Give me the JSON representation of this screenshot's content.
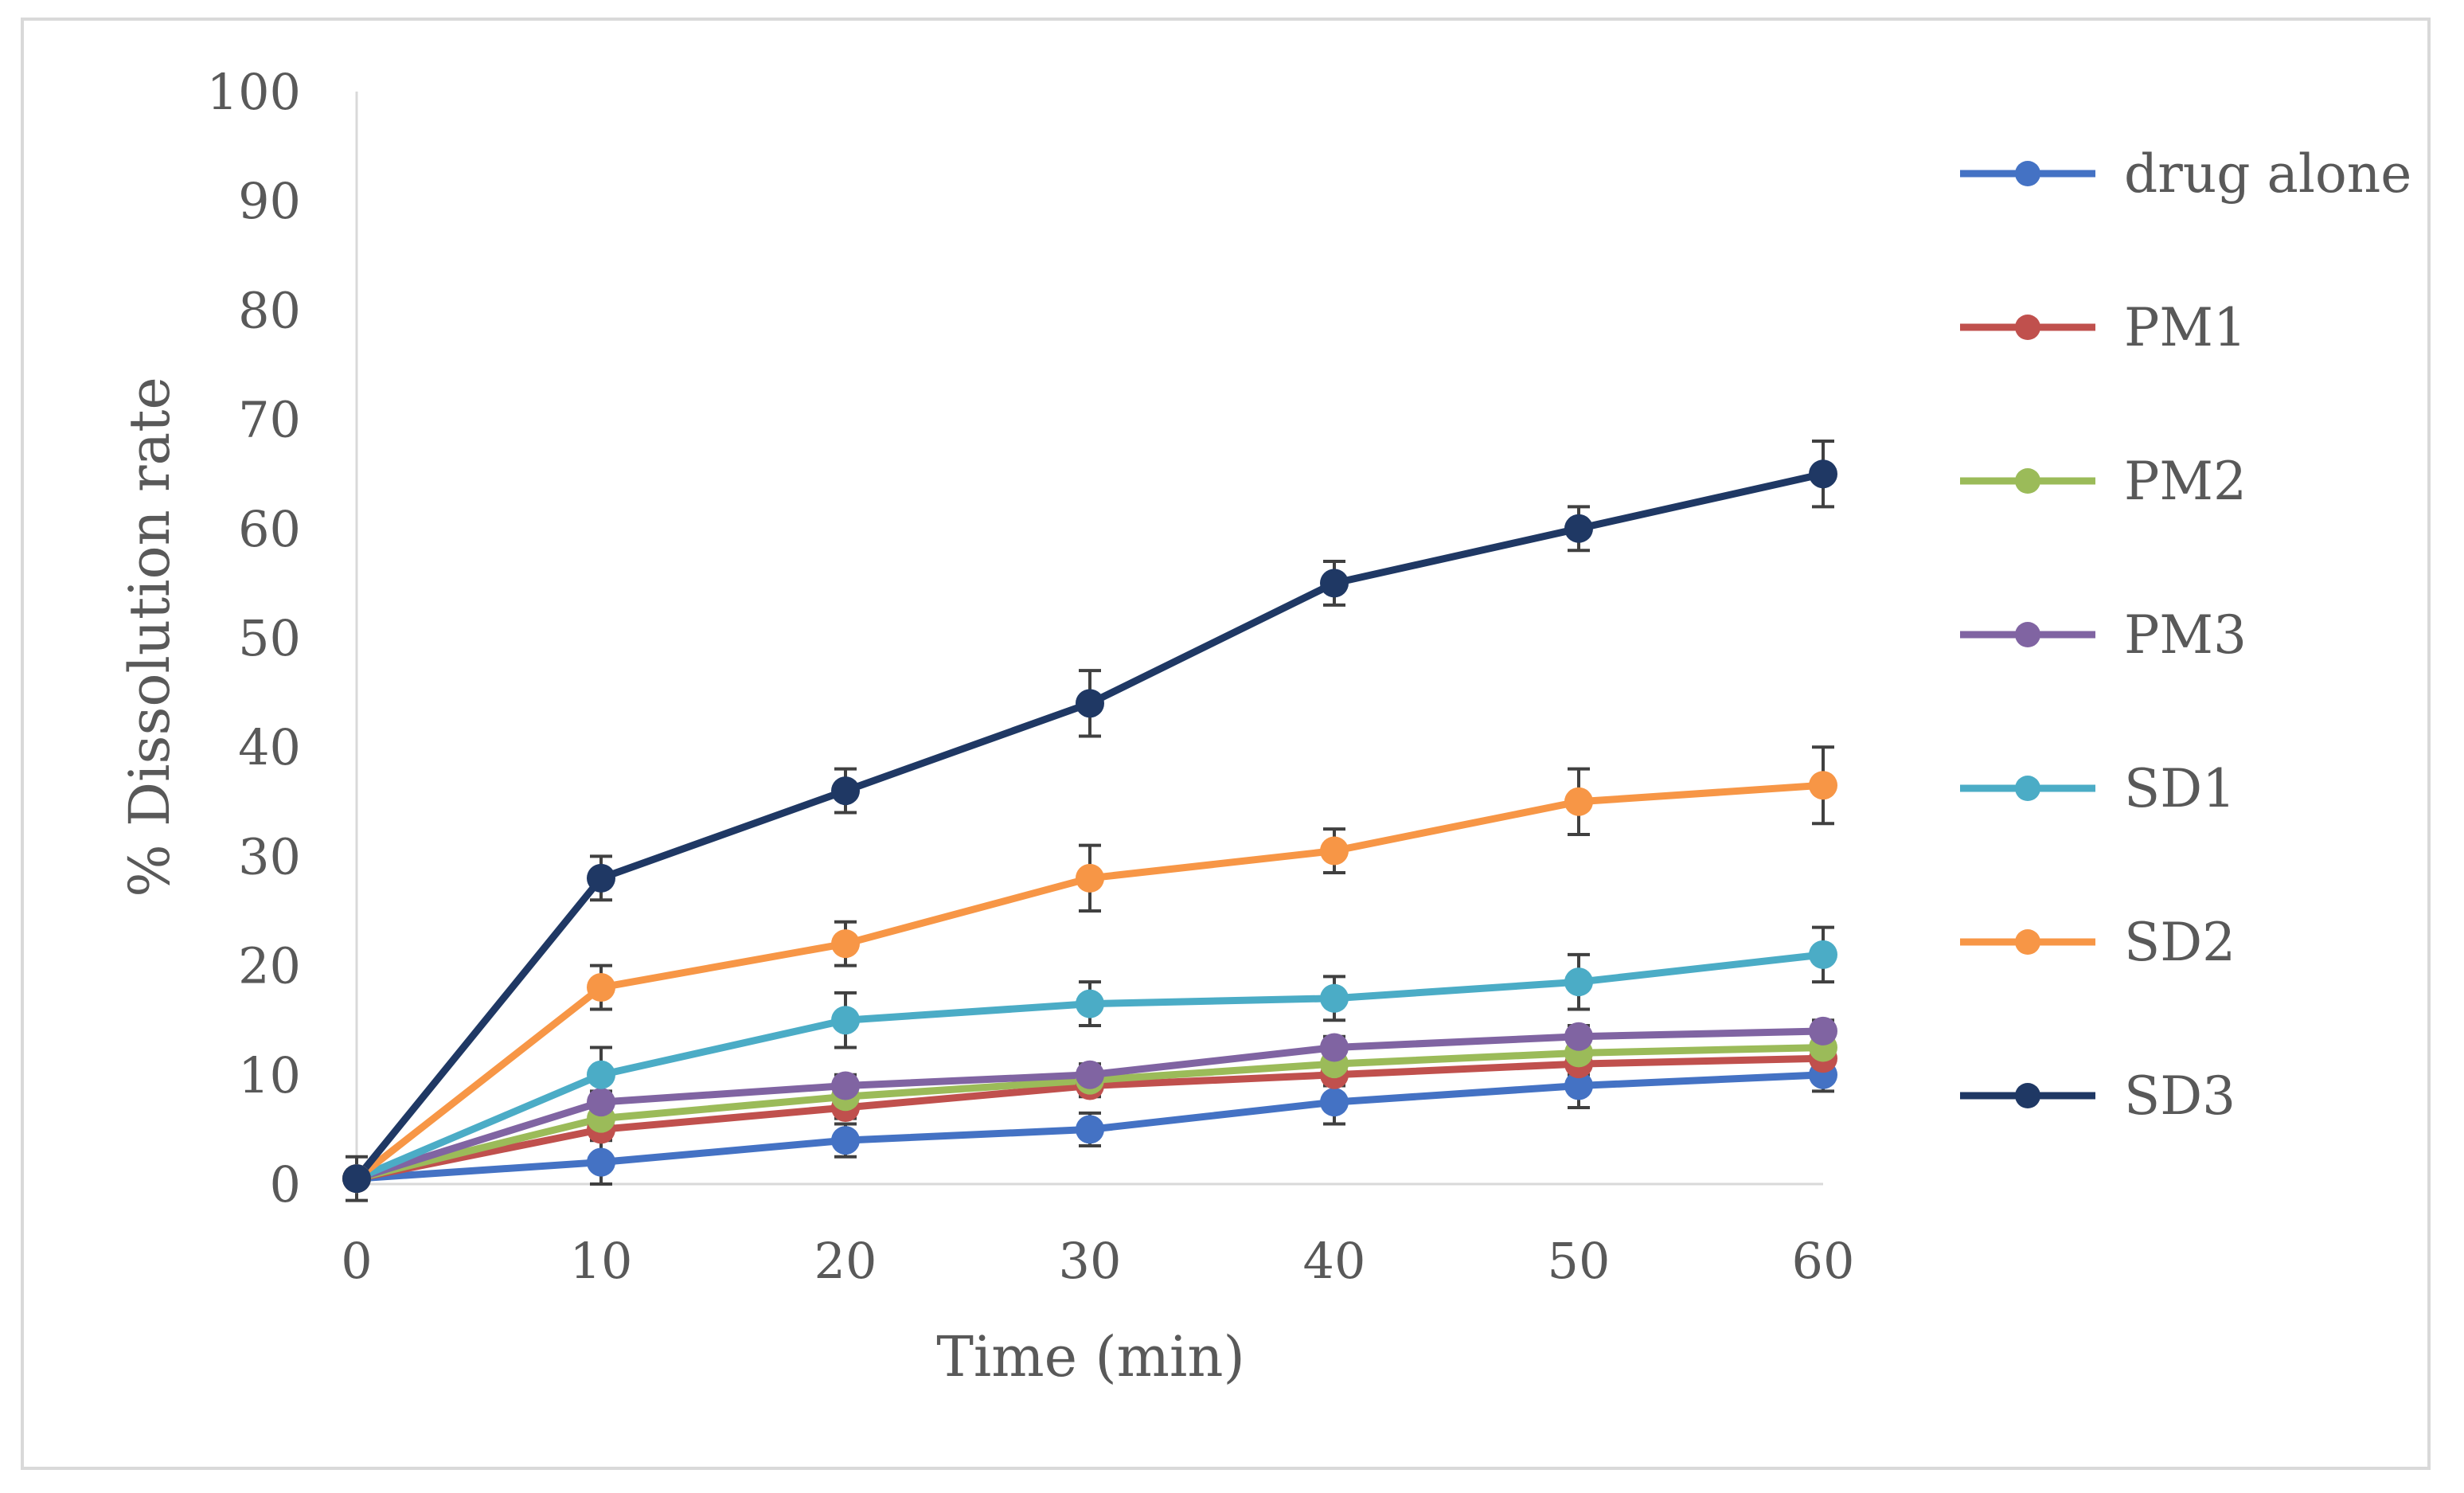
{
  "chart_data": {
    "type": "line",
    "title": "",
    "xlabel": "Time (min)",
    "ylabel": "% Dissolution rate",
    "x": [
      0,
      10,
      20,
      30,
      40,
      50,
      60
    ],
    "xlim": [
      0,
      60
    ],
    "ylim": [
      0,
      100
    ],
    "xticks": [
      "0",
      "10",
      "20",
      "30",
      "40",
      "50",
      "60"
    ],
    "yticks": [
      "0",
      "10",
      "20",
      "30",
      "40",
      "50",
      "60",
      "70",
      "80",
      "90",
      "100"
    ],
    "grid": false,
    "legend_position": "right",
    "series": [
      {
        "name": "drug alone",
        "color": "#4472C4",
        "values": [
          0.5,
          2,
          4,
          5,
          7.5,
          9,
          10
        ],
        "errors": [
          2,
          2,
          1.5,
          1.5,
          2,
          2,
          1.5
        ]
      },
      {
        "name": "PM1",
        "color": "#C0504D",
        "values": [
          0.5,
          5,
          7,
          9,
          10,
          11,
          11.5
        ],
        "errors": [
          0,
          1,
          1,
          1,
          1,
          1,
          1
        ]
      },
      {
        "name": "PM2",
        "color": "#9BBB59",
        "values": [
          0.5,
          6,
          8,
          9.5,
          11,
          12,
          12.5
        ],
        "errors": [
          0,
          1,
          1,
          1,
          1,
          1,
          1
        ]
      },
      {
        "name": "PM3",
        "color": "#8064A2",
        "values": [
          0.5,
          7.5,
          9,
          10,
          12.5,
          13.5,
          14
        ],
        "errors": [
          0,
          1,
          1,
          1,
          1,
          1,
          1
        ]
      },
      {
        "name": "SD1",
        "color": "#4BACC6",
        "values": [
          0.5,
          10,
          15,
          16.5,
          17,
          18.5,
          21
        ],
        "errors": [
          0,
          2.5,
          2.5,
          2,
          2,
          2.5,
          2.5
        ]
      },
      {
        "name": "SD2",
        "color": "#F79646",
        "values": [
          0.5,
          18,
          22,
          28,
          30.5,
          35,
          36.5
        ],
        "errors": [
          0,
          2,
          2,
          3,
          2,
          3,
          3.5
        ]
      },
      {
        "name": "SD3",
        "color": "#1F3864",
        "values": [
          0.5,
          28,
          36,
          44,
          55,
          60,
          65
        ],
        "errors": [
          0,
          2,
          2,
          3,
          2,
          2,
          3
        ]
      }
    ],
    "axis_color": "#d9d9d9",
    "error_bar_color": "#404040"
  }
}
